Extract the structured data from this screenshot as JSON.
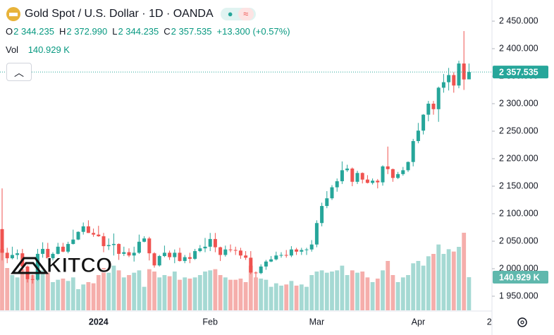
{
  "header": {
    "title": "Gold Spot / U.S. Dollar · 1D · OANDA",
    "ohlc": [
      {
        "key": "O",
        "value": "2 344.235"
      },
      {
        "key": "H",
        "value": "2 372.990"
      },
      {
        "key": "L",
        "value": "2 344.235"
      },
      {
        "key": "C",
        "value": "2 357.535"
      }
    ],
    "change": "+13.300 (+0.57%)",
    "volume_key": "Vol"
  },
  "chart_data": {
    "type": "candlestick",
    "categories": [
      null,
      null,
      null,
      null,
      null,
      null,
      null,
      null,
      null,
      null,
      null,
      null,
      null,
      null,
      null,
      null,
      null,
      null,
      null,
      "2024",
      null,
      null,
      null,
      null,
      null,
      null,
      null,
      null,
      null,
      null,
      null,
      null,
      null,
      null,
      null,
      null,
      null,
      null,
      null,
      null,
      null,
      "Feb",
      null,
      null,
      null,
      null,
      null,
      null,
      null,
      null,
      null,
      null,
      null,
      null,
      null,
      null,
      null,
      null,
      null,
      null,
      null,
      null,
      "Mar",
      null,
      null,
      null,
      null,
      null,
      null,
      null,
      null,
      null,
      null,
      null,
      null,
      null,
      null,
      null,
      null,
      null,
      null,
      null,
      "Apr",
      null,
      null,
      null,
      null,
      null,
      null,
      null,
      null,
      null,
      null,
      null,
      null,
      null,
      "2"
    ],
    "open": [
      2072,
      2029,
      2019,
      2025,
      2028,
      2004,
      1981,
      1980,
      2027,
      2036,
      2019,
      2027,
      2040,
      2031,
      2045,
      2053,
      2067,
      2077,
      2065,
      2062,
      2059,
      2041,
      2043,
      2045,
      2027,
      2030,
      2024,
      2029,
      2049,
      2055,
      2028,
      2006,
      2023,
      2029,
      2021,
      2029,
      2014,
      2021,
      2018,
      2032,
      2037,
      2040,
      2054,
      2039,
      2025,
      2035,
      2034,
      2033,
      2024,
      2020,
      1993,
      1992,
      2004,
      2013,
      2017,
      2024,
      2025,
      2024,
      2035,
      2031,
      2034,
      2035,
      2044,
      2083,
      2114,
      2128,
      2148,
      2159,
      2179,
      2182,
      2158,
      2174,
      2162,
      2156,
      2160,
      2157,
      2186,
      2181,
      2165,
      2172,
      2179,
      2194,
      2232,
      2251,
      2280,
      2300,
      2290,
      2329,
      2339,
      2352,
      2333,
      2373,
      2344.235,
      null,
      null,
      null,
      null
    ],
    "high": [
      2146,
      2038,
      2040,
      2035,
      2036,
      2006,
      1989,
      2036,
      2048,
      2047,
      2030,
      2047,
      2047,
      2049,
      2071,
      2068,
      2084,
      2088,
      2073,
      2078,
      2065,
      2055,
      2064,
      2046,
      2040,
      2037,
      2040,
      2062,
      2059,
      2058,
      2030,
      2025,
      2042,
      2033,
      2035,
      2038,
      2025,
      2029,
      2036,
      2043,
      2056,
      2065,
      2065,
      2040,
      2042,
      2044,
      2040,
      2038,
      2032,
      2032,
      1995,
      2008,
      2016,
      2023,
      2031,
      2030,
      2034,
      2041,
      2038,
      2038,
      2038,
      2052,
      2088,
      2120,
      2141,
      2152,
      2164,
      2195,
      2189,
      2184,
      2178,
      2175,
      2170,
      2164,
      2163,
      2188,
      2222,
      2182,
      2176,
      2185,
      2195,
      2236,
      2265,
      2281,
      2305,
      2305,
      2331,
      2354,
      2365,
      2357,
      2378,
      2432,
      2372.99,
      null,
      null,
      null,
      null
    ],
    "low": [
      2015,
      2010,
      2017,
      2017,
      1995,
      1975,
      1973,
      1978,
      2020,
      2016,
      2015,
      2026,
      2030,
      2028,
      2044,
      2052,
      2062,
      2065,
      2058,
      2058,
      2030,
      2034,
      2024,
      2016,
      2023,
      2021,
      2013,
      2027,
      2048,
      2015,
      2002,
      2004,
      2021,
      2016,
      2010,
      2013,
      2010,
      2010,
      2016,
      2030,
      2030,
      2032,
      2030,
      2014,
      2022,
      2030,
      2025,
      2018,
      2016,
      1990,
      1984,
      1990,
      1998,
      2012,
      2015,
      2020,
      2020,
      2021,
      2025,
      2025,
      2025,
      2031,
      2039,
      2077,
      2110,
      2125,
      2140,
      2154,
      2176,
      2150,
      2154,
      2155,
      2155,
      2153,
      2146,
      2151,
      2172,
      2158,
      2163,
      2169,
      2176,
      2186,
      2228,
      2244,
      2268,
      2280,
      2267,
      2320,
      2324,
      2320,
      2328,
      2325,
      2344.235,
      null,
      null,
      null,
      null
    ],
    "close": [
      2029,
      2019,
      2025,
      2028,
      2004,
      1981,
      1980,
      2027,
      2036,
      2019,
      2027,
      2040,
      2031,
      2045,
      2053,
      2067,
      2077,
      2065,
      2062,
      2059,
      2041,
      2043,
      2045,
      2027,
      2030,
      2024,
      2029,
      2049,
      2055,
      2028,
      2006,
      2023,
      2029,
      2021,
      2029,
      2014,
      2021,
      2018,
      2032,
      2037,
      2040,
      2054,
      2039,
      2025,
      2035,
      2034,
      2033,
      2024,
      2020,
      1993,
      1992,
      2004,
      2013,
      2017,
      2024,
      2025,
      2024,
      2035,
      2031,
      2034,
      2035,
      2044,
      2083,
      2114,
      2128,
      2148,
      2159,
      2179,
      2182,
      2158,
      2174,
      2162,
      2156,
      2160,
      2157,
      2186,
      2181,
      2165,
      2172,
      2179,
      2194,
      2232,
      2251,
      2280,
      2300,
      2290,
      2329,
      2339,
      2352,
      2333,
      2373,
      2344,
      2357.535,
      null,
      null,
      null,
      null
    ],
    "volume": [
      260,
      180,
      150,
      140,
      175,
      160,
      150,
      200,
      170,
      165,
      120,
      130,
      135,
      125,
      140,
      90,
      110,
      120,
      115,
      150,
      180,
      160,
      190,
      170,
      140,
      150,
      160,
      170,
      100,
      175,
      165,
      140,
      150,
      145,
      165,
      130,
      140,
      135,
      140,
      150,
      165,
      170,
      175,
      150,
      140,
      130,
      130,
      135,
      120,
      190,
      140,
      135,
      130,
      100,
      115,
      105,
      110,
      125,
      105,
      110,
      100,
      150,
      165,
      170,
      160,
      165,
      170,
      190,
      150,
      170,
      160,
      165,
      140,
      120,
      135,
      170,
      210,
      150,
      120,
      140,
      150,
      200,
      210,
      190,
      230,
      240,
      280,
      240,
      260,
      250,
      270,
      330,
      140.929,
      null,
      null,
      null,
      null
    ],
    "ylim": [
      1924.36,
      2488.46
    ],
    "yticks": [
      {
        "value": 2450,
        "label": "2 450.000"
      },
      {
        "value": 2400,
        "label": "2 400.000"
      },
      {
        "value": 2350,
        "label": "2 350.000"
      },
      {
        "value": 2300,
        "label": "2 300.000"
      },
      {
        "value": 2250,
        "label": "2 250.000"
      },
      {
        "value": 2200,
        "label": "2 200.000"
      },
      {
        "value": 2150,
        "label": "2 150.000"
      },
      {
        "value": 2100,
        "label": "2 100.000"
      },
      {
        "value": 2050,
        "label": "2 050.000"
      },
      {
        "value": 2000,
        "label": "2 000.000"
      },
      {
        "value": 1950,
        "label": "1 950.000"
      }
    ],
    "volume_ylim": [
      0,
      1320
    ],
    "last_price": {
      "value": 2357.535,
      "label": "2 357.535"
    },
    "last_volume": {
      "value": 140.929,
      "label": "140.929 K"
    },
    "up_color": "#26a69a",
    "down_color": "#ef5350",
    "volume_up_color": "#a5d9d3",
    "volume_down_color": "#f5aeab",
    "grid": false,
    "watermark": "KITCO"
  }
}
